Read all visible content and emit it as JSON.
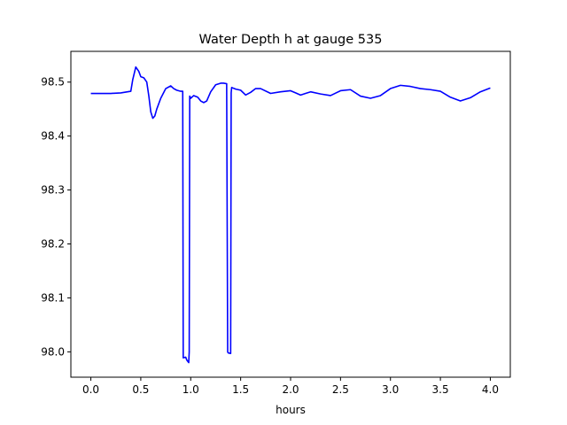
{
  "chart_data": {
    "type": "line",
    "title": "Water Depth h at gauge 535",
    "xlabel": "hours",
    "ylabel": "",
    "xlim": [
      -0.2,
      4.2
    ],
    "ylim": [
      97.953,
      98.557
    ],
    "xticks": [
      {
        "value": 0.0,
        "label": "0.0"
      },
      {
        "value": 0.5,
        "label": "0.5"
      },
      {
        "value": 1.0,
        "label": "1.0"
      },
      {
        "value": 1.5,
        "label": "1.5"
      },
      {
        "value": 2.0,
        "label": "2.0"
      },
      {
        "value": 2.5,
        "label": "2.5"
      },
      {
        "value": 3.0,
        "label": "3.0"
      },
      {
        "value": 3.5,
        "label": "3.5"
      },
      {
        "value": 4.0,
        "label": "4.0"
      }
    ],
    "yticks": [
      {
        "value": 98.0,
        "label": "98.0"
      },
      {
        "value": 98.1,
        "label": "98.1"
      },
      {
        "value": 98.2,
        "label": "98.2"
      },
      {
        "value": 98.3,
        "label": "98.3"
      },
      {
        "value": 98.4,
        "label": "98.4"
      },
      {
        "value": 98.5,
        "label": "98.5"
      }
    ],
    "grid": false,
    "series": [
      {
        "color": "#0000ff",
        "x": [
          0.0,
          0.1,
          0.2,
          0.3,
          0.4,
          0.42,
          0.45,
          0.48,
          0.5,
          0.53,
          0.56,
          0.58,
          0.6,
          0.62,
          0.64,
          0.66,
          0.7,
          0.75,
          0.8,
          0.83,
          0.86,
          0.9,
          0.92,
          0.925,
          0.95,
          0.96,
          0.98,
          0.985,
          0.99,
          1.0,
          1.03,
          1.07,
          1.1,
          1.13,
          1.16,
          1.2,
          1.25,
          1.3,
          1.33,
          1.36,
          1.37,
          1.375,
          1.4,
          1.405,
          1.41,
          1.45,
          1.5,
          1.55,
          1.6,
          1.65,
          1.7,
          1.8,
          1.9,
          2.0,
          2.05,
          2.1,
          2.15,
          2.2,
          2.3,
          2.4,
          2.5,
          2.6,
          2.7,
          2.8,
          2.9,
          3.0,
          3.1,
          3.2,
          3.3,
          3.4,
          3.5,
          3.6,
          3.7,
          3.8,
          3.9,
          4.0
        ],
        "y": [
          98.479,
          98.479,
          98.479,
          98.48,
          98.483,
          98.505,
          98.528,
          98.52,
          98.51,
          98.508,
          98.5,
          98.475,
          98.445,
          98.433,
          98.437,
          98.45,
          98.47,
          98.488,
          98.493,
          98.488,
          98.485,
          98.483,
          98.483,
          97.989,
          97.99,
          97.985,
          97.98,
          98.0,
          98.474,
          98.47,
          98.475,
          98.472,
          98.465,
          98.462,
          98.465,
          98.482,
          98.495,
          98.498,
          98.498,
          98.497,
          98.0,
          97.998,
          97.997,
          98.48,
          98.49,
          98.487,
          98.485,
          98.476,
          98.481,
          98.488,
          98.488,
          98.479,
          98.482,
          98.484,
          98.48,
          98.476,
          98.479,
          98.482,
          98.478,
          98.475,
          98.484,
          98.486,
          98.474,
          98.47,
          98.475,
          98.488,
          98.494,
          98.492,
          98.488,
          98.486,
          98.483,
          98.472,
          98.465,
          98.471,
          98.482,
          98.489
        ]
      }
    ]
  }
}
